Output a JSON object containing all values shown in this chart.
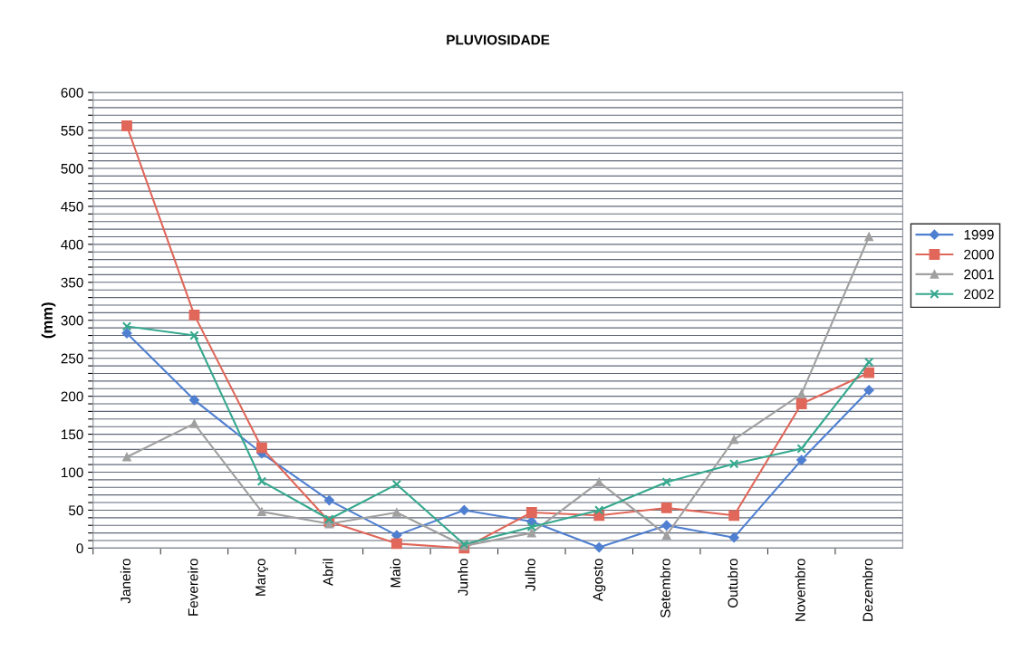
{
  "chart_data": {
    "type": "line",
    "title": "PLUVIOSIDADE",
    "ylabel": "(mm)",
    "categories": [
      "Janeiro",
      "Fevereiro",
      "Março",
      "Abril",
      "Maio",
      "Junho",
      "Julho",
      "Agosto",
      "Setembro",
      "Outubro",
      "Novembro",
      "Dezembro"
    ],
    "series": [
      {
        "name": "1999",
        "color": "#4f7fd0",
        "marker": "diamond",
        "values": [
          283,
          195,
          125,
          63,
          17,
          50,
          35,
          1,
          30,
          14,
          116,
          208
        ]
      },
      {
        "name": "2000",
        "color": "#e0675a",
        "marker": "square",
        "values": [
          556,
          307,
          132,
          35,
          6,
          0,
          47,
          43,
          53,
          43,
          190,
          231
        ]
      },
      {
        "name": "2001",
        "color": "#a0a0a0",
        "marker": "triangle",
        "values": [
          120,
          164,
          48,
          32,
          47,
          3,
          20,
          87,
          17,
          143,
          203,
          410
        ]
      },
      {
        "name": "2002",
        "color": "#35a88e",
        "marker": "cross",
        "values": [
          292,
          280,
          88,
          38,
          84,
          5,
          28,
          50,
          87,
          111,
          131,
          245
        ]
      }
    ],
    "ylim": [
      0,
      600
    ],
    "yticks": [
      0,
      {
        "value": 10,
        "label": null
      },
      {
        "value": 20,
        "label": null
      },
      {
        "value": 30,
        "label": null
      },
      {
        "value": 40,
        "label": null
      },
      50,
      {
        "value": 60,
        "label": null
      },
      {
        "value": 70,
        "label": null
      },
      {
        "value": 80,
        "label": null
      },
      {
        "value": 90,
        "label": null
      },
      100,
      {
        "value": 110,
        "label": null
      },
      {
        "value": 120,
        "label": null
      },
      {
        "value": 130,
        "label": null
      },
      {
        "value": 140,
        "label": null
      },
      150,
      {
        "value": 160,
        "label": null
      },
      {
        "value": 170,
        "label": null
      },
      {
        "value": 180,
        "label": null
      },
      {
        "value": 190,
        "label": null
      },
      200,
      {
        "value": 210,
        "label": null
      },
      {
        "value": 220,
        "label": null
      },
      {
        "value": 230,
        "label": null
      },
      {
        "value": 240,
        "label": null
      },
      250,
      {
        "value": 260,
        "label": null
      },
      {
        "value": 270,
        "label": null
      },
      {
        "value": 280,
        "label": null
      },
      {
        "value": 290,
        "label": null
      },
      300,
      {
        "value": 310,
        "label": null
      },
      {
        "value": 320,
        "label": null
      },
      {
        "value": 330,
        "label": null
      },
      {
        "value": 340,
        "label": null
      },
      350,
      {
        "value": 360,
        "label": null
      },
      {
        "value": 370,
        "label": null
      },
      {
        "value": 380,
        "label": null
      },
      {
        "value": 390,
        "label": null
      },
      400,
      {
        "value": 410,
        "label": null
      },
      {
        "value": 420,
        "label": null
      },
      {
        "value": 430,
        "label": null
      },
      {
        "value": 440,
        "label": null
      },
      450,
      {
        "value": 460,
        "label": null
      },
      {
        "value": 470,
        "label": null
      },
      {
        "value": 480,
        "label": null
      },
      {
        "value": 490,
        "label": null
      },
      500,
      {
        "value": 510,
        "label": null
      },
      {
        "value": 520,
        "label": null
      },
      {
        "value": 530,
        "label": null
      },
      {
        "value": 540,
        "label": null
      },
      550,
      {
        "value": 560,
        "label": null
      },
      {
        "value": 570,
        "label": null
      },
      {
        "value": 580,
        "label": null
      },
      {
        "value": 590,
        "label": null
      },
      600
    ],
    "grid": "y",
    "legend": "right",
    "line_style": "solid"
  }
}
